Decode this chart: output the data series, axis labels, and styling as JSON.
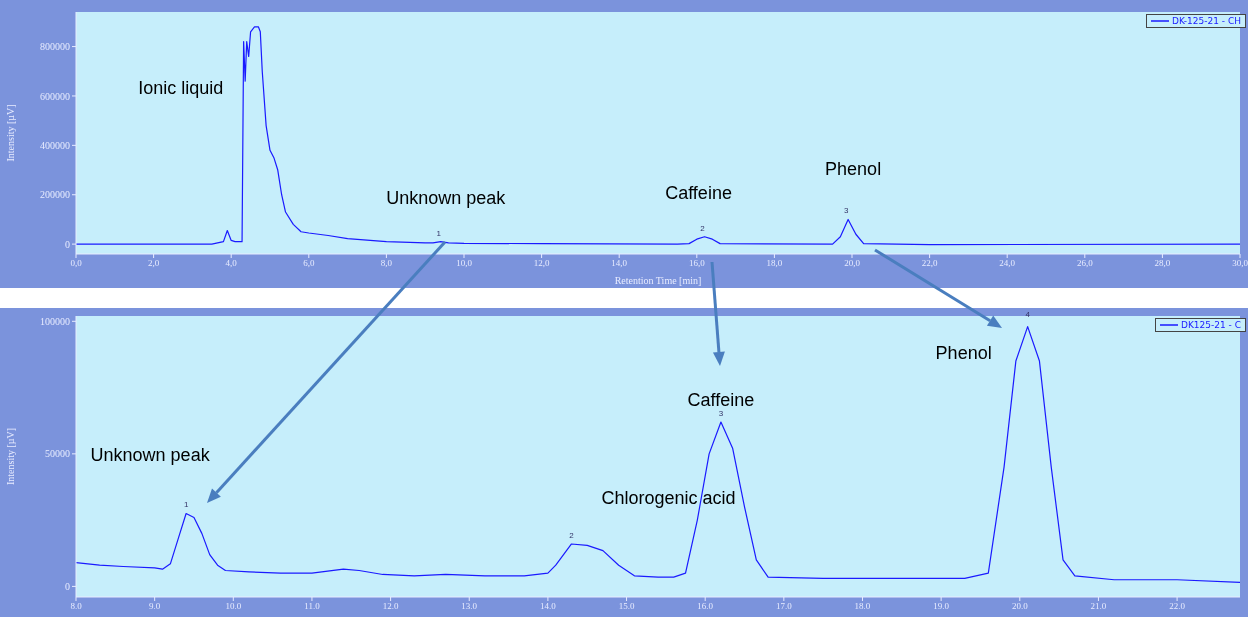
{
  "chart_data": [
    {
      "type": "line",
      "xlabel": "Retention Time [min]",
      "ylabel": "Intensity [µV]",
      "xlim": [
        0,
        30
      ],
      "ylim": [
        -40000,
        940000
      ],
      "xticks": [
        {
          "value": 0,
          "label": "0,0"
        },
        {
          "value": 2,
          "label": "2,0"
        },
        {
          "value": 4,
          "label": "4,0"
        },
        {
          "value": 6,
          "label": "6,0"
        },
        {
          "value": 8,
          "label": "8,0"
        },
        {
          "value": 10,
          "label": "10,0"
        },
        {
          "value": 12,
          "label": "12,0"
        },
        {
          "value": 14,
          "label": "14,0"
        },
        {
          "value": 16,
          "label": "16,0"
        },
        {
          "value": 18,
          "label": "18,0"
        },
        {
          "value": 20,
          "label": "20,0"
        },
        {
          "value": 22,
          "label": "22,0"
        },
        {
          "value": 24,
          "label": "24,0"
        },
        {
          "value": 26,
          "label": "26,0"
        },
        {
          "value": 28,
          "label": "28,0"
        },
        {
          "value": 30,
          "label": "30,0"
        }
      ],
      "yticks": [
        0,
        200000,
        400000,
        600000,
        800000
      ],
      "grid": false,
      "legend": "top right",
      "series": [
        {
          "name": "DK-125-21 - CH",
          "color": "#1a1aff",
          "x": [
            0,
            3.5,
            3.8,
            3.9,
            4.0,
            4.1,
            4.2,
            4.28,
            4.32,
            4.36,
            4.4,
            4.45,
            4.5,
            4.6,
            4.7,
            4.75,
            4.8,
            4.9,
            5.0,
            5.1,
            5.2,
            5.3,
            5.4,
            5.6,
            5.8,
            6.0,
            6.5,
            7.0,
            8.0,
            9.0,
            9.2,
            9.4,
            9.6,
            10,
            12,
            15.5,
            15.8,
            16.0,
            16.2,
            16.4,
            16.6,
            19.5,
            19.7,
            19.9,
            20.1,
            20.3,
            22,
            30
          ],
          "values": [
            0,
            0,
            10000,
            55000,
            15000,
            10000,
            10000,
            10000,
            820000,
            660000,
            820000,
            760000,
            860000,
            880000,
            880000,
            860000,
            700000,
            480000,
            380000,
            350000,
            300000,
            200000,
            130000,
            80000,
            50000,
            45000,
            35000,
            22000,
            10000,
            5000,
            5000,
            10000,
            5000,
            3000,
            2000,
            0,
            2000,
            20000,
            30000,
            20000,
            2000,
            0,
            30000,
            100000,
            40000,
            2000,
            -2000,
            0
          ]
        }
      ],
      "annotations": [
        "Ionic liquid",
        {
          "text": "Unknown peak",
          "x": 9.4,
          "y": 10000
        },
        {
          "text": "Caffeine",
          "x": 16.2,
          "y": 30000
        },
        {
          "text": "Phenol",
          "x": 19.9,
          "y": 100000
        },
        {
          "text": "1",
          "x": 9.4,
          "y": 10000
        },
        {
          "text": "2",
          "x": 16.2,
          "y": 30000
        },
        {
          "text": "3",
          "x": 19.9,
          "y": 100000
        }
      ]
    },
    {
      "type": "line",
      "ylabel": "Intensity [µV]",
      "xlim": [
        8,
        22.8
      ],
      "ylim": [
        -4000,
        102000
      ],
      "xticks": [
        {
          "value": 8,
          "label": "8.0"
        },
        {
          "value": 9,
          "label": "9.0"
        },
        {
          "value": 10,
          "label": "10.0"
        },
        {
          "value": 11,
          "label": "11.0"
        },
        {
          "value": 12,
          "label": "12.0"
        },
        {
          "value": 13,
          "label": "13.0"
        },
        {
          "value": 14,
          "label": "14.0"
        },
        {
          "value": 15,
          "label": "15.0"
        },
        {
          "value": 16,
          "label": "16.0"
        },
        {
          "value": 17,
          "label": "17.0"
        },
        {
          "value": 18,
          "label": "18.0"
        },
        {
          "value": 19,
          "label": "19.0"
        },
        {
          "value": 20,
          "label": "20.0"
        },
        {
          "value": 21,
          "label": "21.0"
        },
        {
          "value": 22,
          "label": "22.0"
        }
      ],
      "yticks": [
        0,
        50000,
        100000
      ],
      "grid": false,
      "legend": "top right",
      "series": [
        {
          "name": "DK125-21 - C",
          "color": "#1a1aff",
          "x": [
            8.0,
            8.3,
            8.6,
            9.0,
            9.1,
            9.2,
            9.3,
            9.4,
            9.5,
            9.6,
            9.7,
            9.8,
            9.9,
            10.2,
            10.6,
            11.0,
            11.4,
            11.6,
            11.9,
            12.3,
            12.7,
            13.2,
            13.7,
            14.0,
            14.1,
            14.3,
            14.5,
            14.7,
            14.9,
            15.1,
            15.4,
            15.6,
            15.75,
            15.9,
            16.05,
            16.2,
            16.35,
            16.5,
            16.65,
            16.8,
            17.5,
            18.5,
            19.3,
            19.6,
            19.8,
            19.95,
            20.1,
            20.25,
            20.4,
            20.55,
            20.7,
            21.2,
            22,
            22.8
          ],
          "values": [
            9000,
            8000,
            7500,
            7000,
            6500,
            8500,
            18000,
            27500,
            26000,
            20000,
            12000,
            8000,
            6000,
            5500,
            5000,
            5000,
            6500,
            6000,
            4500,
            4000,
            4500,
            4000,
            4000,
            5000,
            8000,
            16000,
            15500,
            13500,
            8000,
            4000,
            3500,
            3500,
            5000,
            25000,
            50000,
            62000,
            52000,
            30000,
            10000,
            3500,
            3000,
            3000,
            3000,
            5000,
            45000,
            85000,
            98000,
            85000,
            45000,
            10000,
            4000,
            2500,
            2500,
            1500
          ]
        }
      ],
      "annotations": [
        {
          "text": "Unknown peak",
          "x": 9.4,
          "y": 27500
        },
        {
          "text": "Chlorogenic acid",
          "x": 14.3,
          "y": 16000
        },
        {
          "text": "Caffeine",
          "x": 16.2,
          "y": 62000
        },
        {
          "text": "Phenol",
          "x": 20.1,
          "y": 98000
        },
        {
          "text": "1",
          "x": 9.4,
          "y": 27500
        },
        {
          "text": "2",
          "x": 14.3,
          "y": 16000
        },
        {
          "text": "3",
          "x": 16.2,
          "y": 62000
        },
        {
          "text": "4",
          "x": 20.1,
          "y": 98000
        }
      ]
    }
  ]
}
